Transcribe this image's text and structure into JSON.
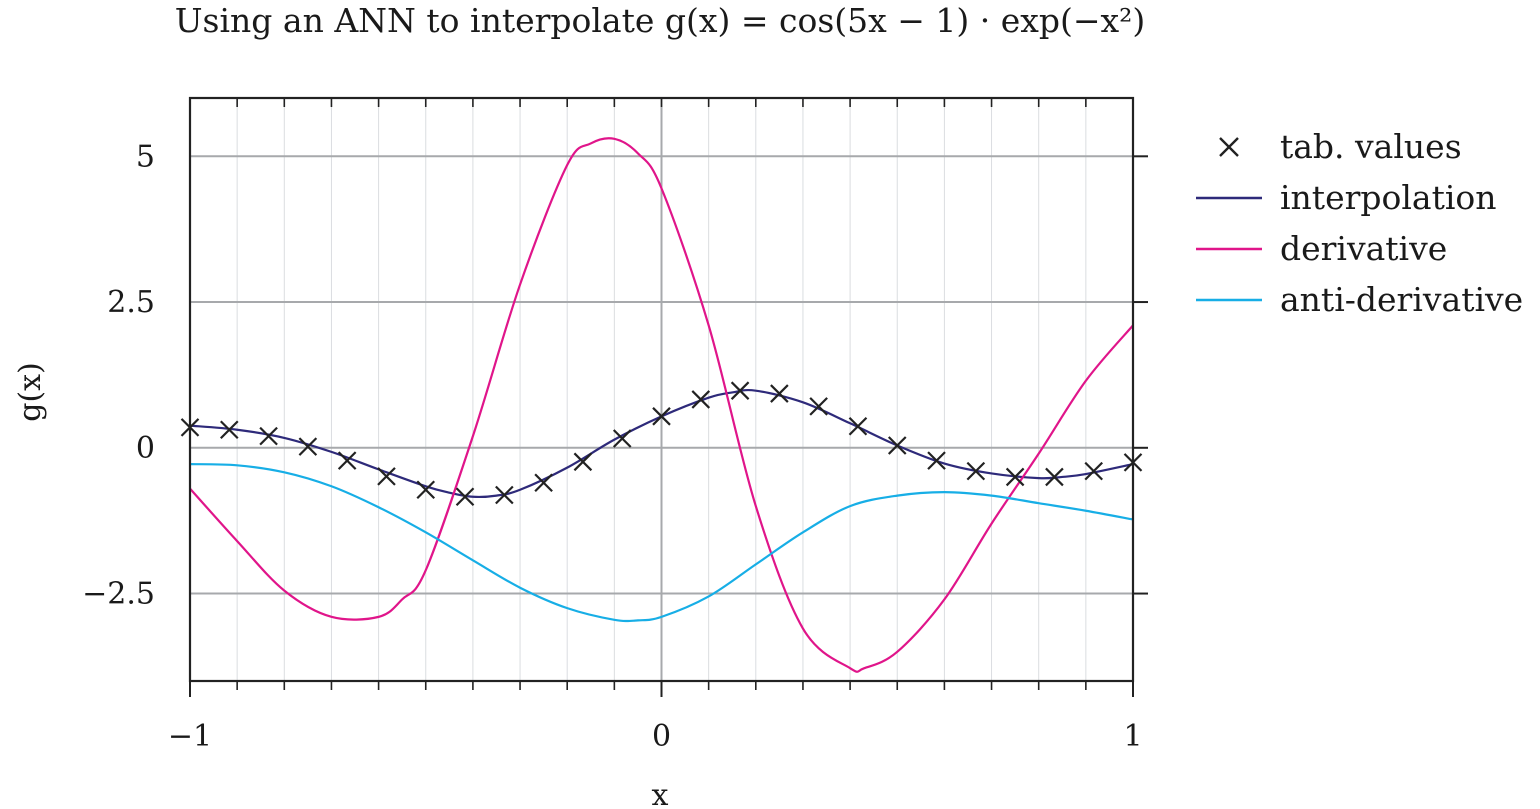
{
  "chart_data": {
    "type": "line",
    "title": "Using an ANN to interpolate g(x) = cos(5x − 1) · exp(−x²)",
    "xlabel": "x",
    "ylabel": "g(x)",
    "xlim": [
      -1,
      1
    ],
    "ylim": [
      -4,
      6
    ],
    "x_ticks": [
      -1,
      0,
      1
    ],
    "x_tick_labels": [
      "−1",
      "0",
      "1"
    ],
    "y_ticks": [
      5,
      2.5,
      0,
      -2.5
    ],
    "y_tick_labels": [
      "5",
      "2.5",
      "0",
      "−2.5"
    ],
    "x_minor_tick_step": 0.1,
    "grid": true,
    "legend_position": "outside-right",
    "series": [
      {
        "name": "tab. values",
        "kind": "markers",
        "marker": "cross",
        "color": "#222222",
        "x": [
          -1.0,
          -0.9167,
          -0.8333,
          -0.75,
          -0.6667,
          -0.5833,
          -0.5,
          -0.4167,
          -0.3333,
          -0.25,
          -0.1667,
          -0.0833,
          0.0,
          0.0833,
          0.1667,
          0.25,
          0.3333,
          0.4167,
          0.5,
          0.5833,
          0.6667,
          0.75,
          0.8333,
          0.9167,
          1.0
        ],
        "y": [
          0.35,
          0.31,
          0.2,
          0.02,
          -0.22,
          -0.49,
          -0.72,
          -0.84,
          -0.81,
          -0.6,
          -0.24,
          0.16,
          0.54,
          0.83,
          0.98,
          0.93,
          0.71,
          0.37,
          0.04,
          -0.22,
          -0.4,
          -0.5,
          -0.5,
          -0.4,
          -0.25
        ]
      },
      {
        "name": "interpolation",
        "kind": "line",
        "color": "#2e2a7a",
        "x": [
          -1.0,
          -0.9,
          -0.8,
          -0.7,
          -0.6,
          -0.5,
          -0.45,
          -0.4,
          -0.35,
          -0.3,
          -0.2,
          -0.1,
          0.0,
          0.1,
          0.15,
          0.2,
          0.3,
          0.4,
          0.5,
          0.6,
          0.7,
          0.8,
          0.85,
          0.9,
          1.0
        ],
        "y": [
          0.38,
          0.31,
          0.17,
          -0.07,
          -0.37,
          -0.66,
          -0.77,
          -0.84,
          -0.82,
          -0.72,
          -0.34,
          0.14,
          0.54,
          0.86,
          0.95,
          0.98,
          0.78,
          0.42,
          0.04,
          -0.27,
          -0.44,
          -0.52,
          -0.5,
          -0.45,
          -0.28
        ]
      },
      {
        "name": "derivative",
        "kind": "line",
        "color": "#e0158a",
        "x": [
          -1.0,
          -0.9,
          -0.8,
          -0.7,
          -0.6,
          -0.55,
          -0.5,
          -0.4,
          -0.3,
          -0.2,
          -0.15,
          -0.1,
          -0.05,
          0.0,
          0.1,
          0.2,
          0.3,
          0.4,
          0.43,
          0.5,
          0.6,
          0.7,
          0.8,
          0.9,
          1.0
        ],
        "y": [
          -0.7,
          -1.6,
          -2.45,
          -2.9,
          -2.9,
          -2.6,
          -2.1,
          0.2,
          2.8,
          4.85,
          5.22,
          5.3,
          5.05,
          4.45,
          2.1,
          -1.0,
          -3.1,
          -3.78,
          -3.78,
          -3.5,
          -2.6,
          -1.3,
          -0.1,
          1.15,
          2.1
        ]
      },
      {
        "name": "anti-derivative",
        "kind": "line",
        "color": "#17aee6",
        "x": [
          -1.0,
          -0.9,
          -0.8,
          -0.7,
          -0.6,
          -0.5,
          -0.4,
          -0.3,
          -0.2,
          -0.1,
          -0.05,
          0.0,
          0.1,
          0.2,
          0.3,
          0.4,
          0.5,
          0.6,
          0.7,
          0.8,
          0.9,
          1.0
        ],
        "y": [
          -0.28,
          -0.3,
          -0.42,
          -0.66,
          -1.02,
          -1.45,
          -1.93,
          -2.4,
          -2.75,
          -2.95,
          -2.96,
          -2.9,
          -2.55,
          -2.0,
          -1.45,
          -1.0,
          -0.82,
          -0.76,
          -0.82,
          -0.95,
          -1.08,
          -1.23
        ]
      }
    ]
  }
}
